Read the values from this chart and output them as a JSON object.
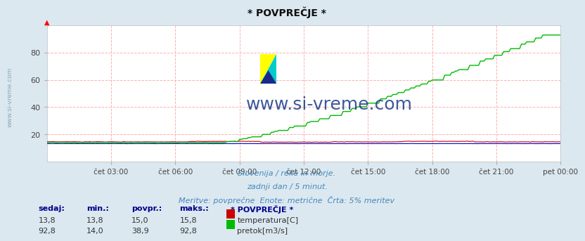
{
  "title": "* POVPREČJE *",
  "subtitle1": "Slovenija / reke in morje.",
  "subtitle2": "zadnji dan / 5 minut.",
  "subtitle3": "Meritve: povprečne  Enote: metrične  Črta: 5% meritev",
  "xlabel_ticks": [
    "čet 03:00",
    "čet 06:00",
    "čet 09:00",
    "čet 12:00",
    "čet 15:00",
    "čet 18:00",
    "čet 21:00",
    "pet 00:00"
  ],
  "ylim": [
    0,
    100
  ],
  "xlim": [
    0,
    288
  ],
  "tick_positions": [
    36,
    72,
    108,
    144,
    180,
    216,
    252,
    288
  ],
  "temp_color": "#cc0000",
  "flow_color": "#00bb00",
  "height_color": "#0000cc",
  "grid_color": "#ffb0b0",
  "fig_bg_color": "#dce8f0",
  "plot_bg_color": "#ffffff",
  "watermark_text": "www.si-vreme.com",
  "watermark_color": "#1a3a8a",
  "watermark_fontsize": 18,
  "sidebar_text": "www.si-vreme.com",
  "sidebar_color": "#88aabb",
  "legend_title": "* POVPREČJE *",
  "label_color": "#00008b",
  "table_headers": [
    "sedaj:",
    "min.:",
    "povpr.:",
    "maks.:"
  ],
  "temp_row": [
    "13,8",
    "13,8",
    "15,0",
    "15,8",
    "temperatura[C]"
  ],
  "flow_row": [
    "92,8",
    "14,0",
    "38,9",
    "92,8",
    "pretok[m3/s]"
  ],
  "n_points": 289,
  "temp_value": 14.5,
  "flow_start": 14.0,
  "flow_peak": 92.8,
  "flow_rise_start_idx": 96,
  "flow_rise_end_idx": 278,
  "height_value": 13.2,
  "icon_x_data": 144,
  "icon_y_data": 53,
  "icon_colors": [
    "#ffff00",
    "#00ccdd",
    "#1a2a8a"
  ]
}
